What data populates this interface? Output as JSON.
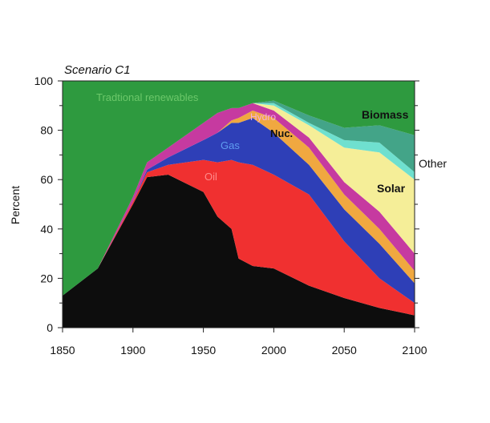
{
  "chart_data": {
    "type": "area",
    "title": "Scenario C1",
    "xlabel": "",
    "ylabel": "Percent",
    "xlim": [
      1850,
      2100
    ],
    "ylim": [
      0,
      100
    ],
    "x_ticks": [
      "1850",
      "1900",
      "1950",
      "2000",
      "2050",
      "2100"
    ],
    "y_ticks": [
      "0",
      "20",
      "40",
      "60",
      "80",
      "100"
    ],
    "grid": false,
    "legend": "inline labels",
    "x": [
      1850,
      1875,
      1900,
      1910,
      1925,
      1950,
      1960,
      1970,
      1975,
      1985,
      2000,
      2025,
      2050,
      2075,
      2100
    ],
    "series": [
      {
        "name": "",
        "color": "#0d0d0d",
        "values": [
          13,
          24,
          50,
          61,
          62,
          55,
          45,
          40,
          28,
          25,
          24,
          17,
          12,
          8,
          5
        ]
      },
      {
        "name": "Oil",
        "color": "#f03030",
        "values": [
          0,
          0,
          1,
          2,
          4,
          13,
          22,
          28,
          39,
          41,
          38,
          37,
          23,
          12,
          5
        ]
      },
      {
        "name": "Gas",
        "color": "#2e3fb7",
        "values": [
          0,
          0,
          0,
          1,
          3,
          8,
          12,
          15,
          16,
          19,
          17,
          12,
          13,
          14,
          8
        ]
      },
      {
        "name": "Nuc.",
        "color": "#f0a840",
        "values": [
          0,
          0,
          0,
          0,
          0,
          0,
          0,
          1,
          2,
          3,
          6,
          7,
          6,
          6,
          5
        ]
      },
      {
        "name": "Hydro",
        "color": "#c63aa0",
        "values": [
          0,
          0,
          2,
          3,
          4,
          7,
          8,
          5,
          4,
          3,
          3,
          4,
          5,
          7,
          7
        ]
      },
      {
        "name": "Solar",
        "color": "#f5ee98",
        "values": [
          0,
          0,
          0,
          0,
          0,
          0,
          0,
          0,
          0,
          0,
          2,
          5,
          14,
          24,
          30
        ]
      },
      {
        "name": "Other",
        "color": "#6fe0cf",
        "values": [
          0,
          0,
          0,
          0,
          0,
          0,
          0,
          0,
          0,
          0,
          1,
          1,
          3,
          4,
          3
        ]
      },
      {
        "name": "Biomass",
        "color": "#43a488",
        "values": [
          0,
          0,
          0,
          0,
          0,
          0,
          0,
          0,
          0,
          0,
          1,
          3,
          5,
          7,
          15
        ]
      },
      {
        "name": "Traditional renewables",
        "color": "#2e9a3f",
        "values": [
          87,
          76,
          47,
          33,
          27,
          17,
          13,
          11,
          11,
          9,
          8,
          14,
          19,
          18,
          22
        ]
      }
    ],
    "labels": {
      "traditional": "Tradtional renewables",
      "hydro": "Hydro",
      "nuc": "Nuc.",
      "gas": "Gas",
      "oil": "Oil",
      "biomass": "Biomass",
      "other": "Other",
      "solar": "Solar"
    }
  }
}
